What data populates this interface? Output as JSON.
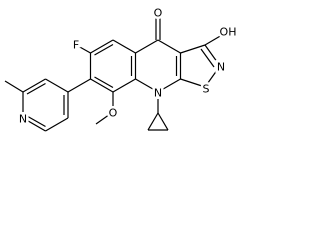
{
  "atoms": [
    {
      "label": "O"
    },
    {
      "label": "OH"
    },
    {
      "label": "F"
    },
    {
      "label": "N"
    },
    {
      "label": "S"
    },
    {
      "label": "N"
    },
    {
      "label": "O"
    },
    {
      "label": "N"
    }
  ]
}
